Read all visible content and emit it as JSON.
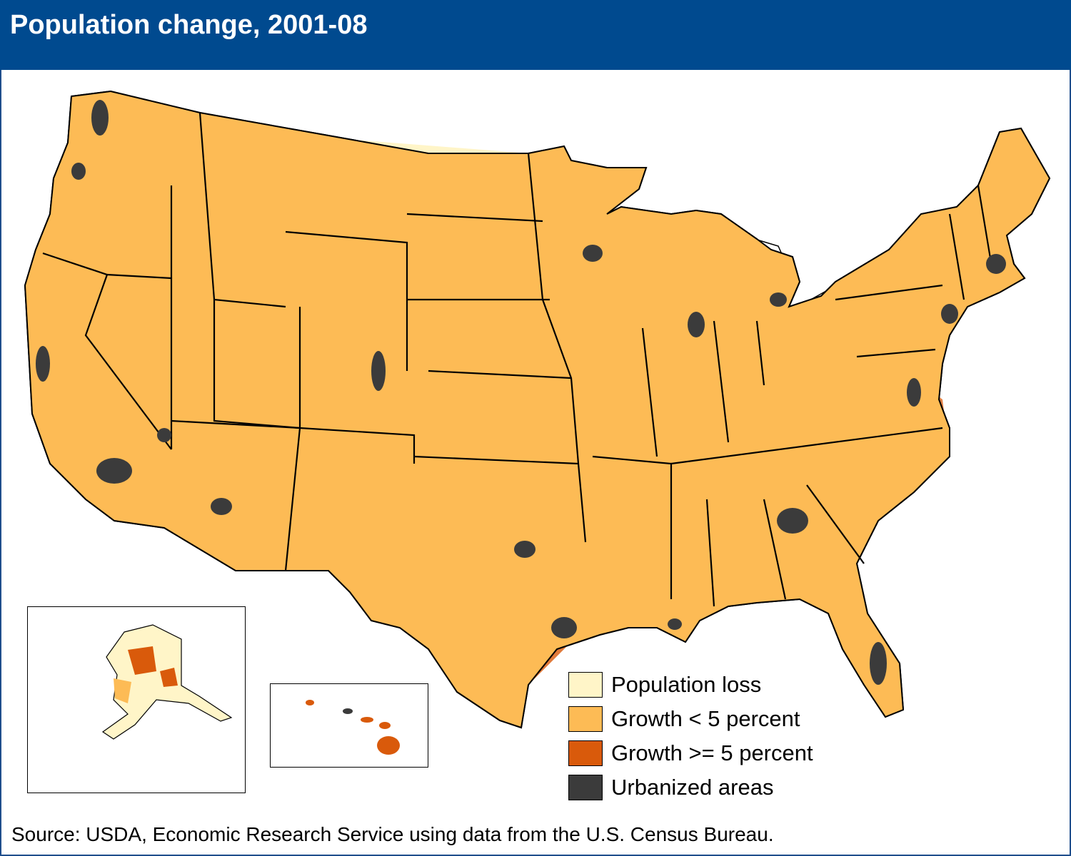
{
  "title": "Population change, 2001-08",
  "source": "Source: USDA, Economic Research Service using data from the U.S. Census Bureau.",
  "colors": {
    "header": "#004a8f",
    "loss": "#fff5c8",
    "growth_low": "#fdbb55",
    "growth_high": "#d95a0b",
    "urban": "#3b3b3b"
  },
  "legend": [
    {
      "label": "Population loss",
      "color": "#fff5c8"
    },
    {
      "label": "Growth < 5 percent",
      "color": "#fdbb55"
    },
    {
      "label": "Growth >= 5 percent",
      "color": "#d95a0b"
    },
    {
      "label": "Urbanized areas",
      "color": "#3b3b3b"
    }
  ],
  "insets": [
    "Alaska",
    "Hawaii"
  ]
}
